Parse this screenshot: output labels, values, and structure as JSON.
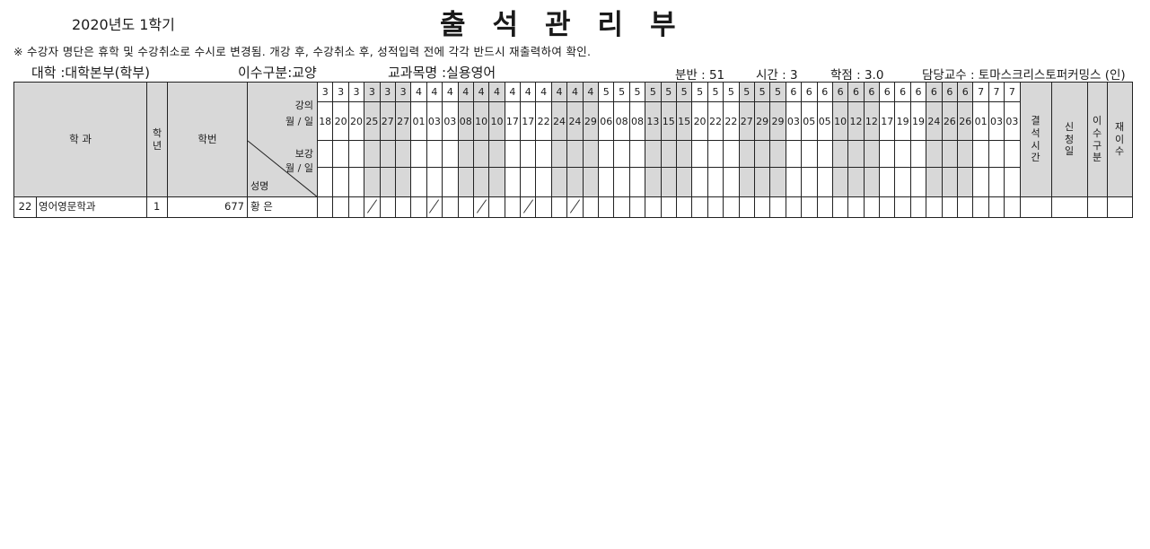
{
  "header": {
    "semester": "2020년도 1학기",
    "title": "출석관리부",
    "notice": "※ 수강자 명단은 휴학 및 수강취소로 수시로 변경됨. 개강 후, 수강취소 후, 성적입력 전에 각각 반드시 재출력하여 확인.",
    "college": "대학 :대학본부(학부)",
    "course_type": "이수구분:교양",
    "course_name": "교과목명 :실용영어",
    "section": "분반 : 51",
    "hours": "시간 : 3",
    "credits": "학점 : 3.0",
    "professor": "담당교수 : 토마스크리스토퍼커밍스 (인)"
  },
  "table_headers": {
    "dept": "학 과",
    "year": "학년",
    "student_id": "학번",
    "lecture": "강의",
    "month_day": "월 / 일",
    "makeup": "보강",
    "makeup_month_day": "월 / 일",
    "name": "성명",
    "absent_hours": "결석시간",
    "apply_date": "신청일",
    "course_class": "이수구분",
    "retake": "재이수"
  },
  "dates": [
    {
      "m": "3",
      "d": "18"
    },
    {
      "m": "3",
      "d": "20"
    },
    {
      "m": "3",
      "d": "20"
    },
    {
      "m": "3",
      "d": "25"
    },
    {
      "m": "3",
      "d": "27"
    },
    {
      "m": "3",
      "d": "27"
    },
    {
      "m": "4",
      "d": "01"
    },
    {
      "m": "4",
      "d": "03"
    },
    {
      "m": "4",
      "d": "03"
    },
    {
      "m": "4",
      "d": "08"
    },
    {
      "m": "4",
      "d": "10"
    },
    {
      "m": "4",
      "d": "10"
    },
    {
      "m": "4",
      "d": "17"
    },
    {
      "m": "4",
      "d": "17"
    },
    {
      "m": "4",
      "d": "22"
    },
    {
      "m": "4",
      "d": "24"
    },
    {
      "m": "4",
      "d": "24"
    },
    {
      "m": "4",
      "d": "29"
    },
    {
      "m": "5",
      "d": "06"
    },
    {
      "m": "5",
      "d": "08"
    },
    {
      "m": "5",
      "d": "08"
    },
    {
      "m": "5",
      "d": "13"
    },
    {
      "m": "5",
      "d": "15"
    },
    {
      "m": "5",
      "d": "15"
    },
    {
      "m": "5",
      "d": "20"
    },
    {
      "m": "5",
      "d": "22"
    },
    {
      "m": "5",
      "d": "22"
    },
    {
      "m": "5",
      "d": "27"
    },
    {
      "m": "5",
      "d": "29"
    },
    {
      "m": "5",
      "d": "29"
    },
    {
      "m": "6",
      "d": "03"
    },
    {
      "m": "6",
      "d": "05"
    },
    {
      "m": "6",
      "d": "05"
    },
    {
      "m": "6",
      "d": "10"
    },
    {
      "m": "6",
      "d": "12"
    },
    {
      "m": "6",
      "d": "12"
    },
    {
      "m": "6",
      "d": "17"
    },
    {
      "m": "6",
      "d": "19"
    },
    {
      "m": "6",
      "d": "19"
    },
    {
      "m": "6",
      "d": "24"
    },
    {
      "m": "6",
      "d": "26"
    },
    {
      "m": "6",
      "d": "26"
    },
    {
      "m": "7",
      "d": "01"
    },
    {
      "m": "7",
      "d": "03"
    },
    {
      "m": "7",
      "d": "03"
    }
  ],
  "students": [
    {
      "no": "22",
      "dept": "영어영문학과",
      "year": "1",
      "student_id": "677",
      "name": "황 은",
      "marks": [
        3,
        7,
        10,
        13,
        16
      ]
    }
  ]
}
